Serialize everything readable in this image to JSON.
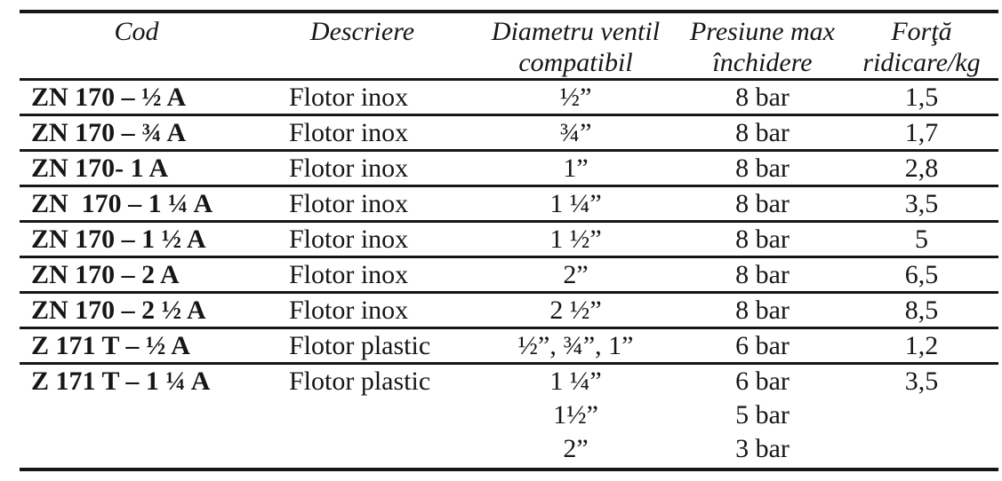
{
  "page": {
    "background": "#ffffff",
    "text_color": "#161616",
    "rule_color": "#161616"
  },
  "table": {
    "columns": [
      {
        "id": "cod",
        "label": "Cod"
      },
      {
        "id": "descriere",
        "label": "Descriere"
      },
      {
        "id": "diametru",
        "label": "Diametru ventil\ncompatibil"
      },
      {
        "id": "presiune",
        "label": "Presiune max\nînchidere"
      },
      {
        "id": "forta",
        "label": "Forţă\nridicare/kg"
      }
    ],
    "rows": [
      {
        "cod": "ZN 170 – ½ A",
        "descriere": "Flotor inox",
        "diametru": "½”",
        "presiune": "8 bar",
        "forta": "1,5"
      },
      {
        "cod": "ZN 170 – ¾ A",
        "descriere": "Flotor inox",
        "diametru": "¾”",
        "presiune": "8 bar",
        "forta": "1,7"
      },
      {
        "cod": "ZN 170- 1 A",
        "descriere": "Flotor inox",
        "diametru": "1”",
        "presiune": "8 bar",
        "forta": "2,8"
      },
      {
        "cod": "ZN  170 – 1 ¼ A",
        "descriere": "Flotor inox",
        "diametru": "1 ¼”",
        "presiune": "8 bar",
        "forta": "3,5"
      },
      {
        "cod": "ZN 170 – 1 ½ A",
        "descriere": "Flotor inox",
        "diametru": "1 ½”",
        "presiune": "8 bar",
        "forta": "5"
      },
      {
        "cod": "ZN 170 – 2 A",
        "descriere": "Flotor inox",
        "diametru": "2”",
        "presiune": "8 bar",
        "forta": "6,5"
      },
      {
        "cod": "ZN 170 – 2 ½ A",
        "descriere": "Flotor inox",
        "diametru": "2 ½”",
        "presiune": "8 bar",
        "forta": "8,5"
      },
      {
        "cod": "Z 171 T – ½ A",
        "descriere": "Flotor plastic",
        "diametru": "½”, ¾”, 1”",
        "presiune": "6 bar",
        "forta": "1,2"
      },
      {
        "cod": "Z 171 T – 1 ¼ A",
        "descriere": "Flotor plastic",
        "diametru": "1 ¼”\n1½”\n2”",
        "presiune": "6 bar\n5 bar\n3 bar",
        "forta": "3,5"
      }
    ]
  }
}
